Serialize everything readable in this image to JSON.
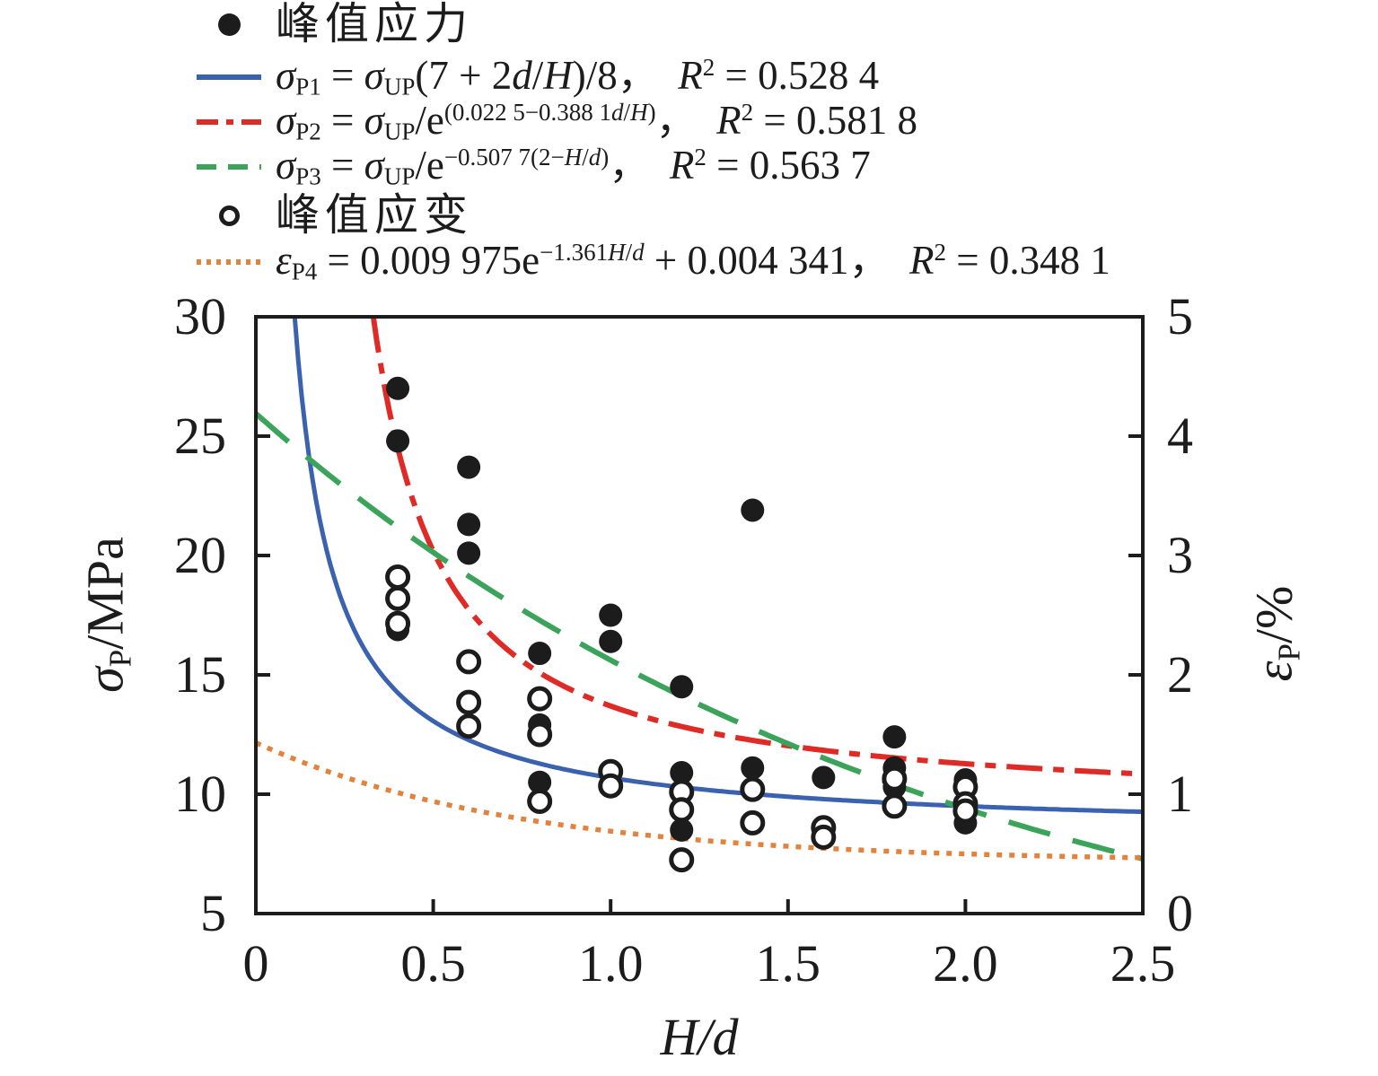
{
  "figure": {
    "background": "#ffffff",
    "text_color": "#1c1c1c"
  },
  "legend": {
    "items": [
      {
        "id": "peak-stress",
        "marker": "dot-filled",
        "cjk": true,
        "label_parts": [
          {
            "t": "峰值应力"
          }
        ]
      },
      {
        "id": "fit-sigma-p1",
        "marker": "line-solid",
        "color": "#3a62ae",
        "label_parts": [
          {
            "t": "σ",
            "i": 1
          },
          {
            "t": "P1",
            "sub": 1
          },
          {
            "t": " = "
          },
          {
            "t": "σ",
            "i": 1
          },
          {
            "t": "UP",
            "sub": 1
          },
          {
            "t": "(7 + 2"
          },
          {
            "t": "d",
            "i": 1
          },
          {
            "t": "/"
          },
          {
            "t": "H",
            "i": 1
          },
          {
            "t": ")/8，  "
          },
          {
            "t": "R",
            "i": 1
          },
          {
            "t": "2",
            "sup": 1
          },
          {
            "t": " = 0.528 4"
          }
        ]
      },
      {
        "id": "fit-sigma-p2",
        "marker": "line-dashdot",
        "color": "#df2b26",
        "label_parts": [
          {
            "t": "σ",
            "i": 1
          },
          {
            "t": "P2",
            "sub": 1
          },
          {
            "t": " = "
          },
          {
            "t": "σ",
            "i": 1
          },
          {
            "t": "UP",
            "sub": 1
          },
          {
            "t": "/e"
          },
          {
            "t": "(0.022 5−0.388 1",
            "sup": 1
          },
          {
            "t": "d",
            "sup": 1,
            "i": 1
          },
          {
            "t": "/",
            "sup": 1
          },
          {
            "t": "H",
            "sup": 1,
            "i": 1
          },
          {
            "t": ")",
            "sup": 1
          },
          {
            "t": "，  "
          },
          {
            "t": "R",
            "i": 1
          },
          {
            "t": "2",
            "sup": 1
          },
          {
            "t": " = 0.581 8"
          }
        ]
      },
      {
        "id": "fit-sigma-p3",
        "marker": "line-dashed",
        "color": "#3ba35a",
        "label_parts": [
          {
            "t": "σ",
            "i": 1
          },
          {
            "t": "P3",
            "sub": 1
          },
          {
            "t": " = "
          },
          {
            "t": "σ",
            "i": 1
          },
          {
            "t": "UP",
            "sub": 1
          },
          {
            "t": "/e"
          },
          {
            "t": "−0.507 7(2−",
            "sup": 1
          },
          {
            "t": "H",
            "sup": 1,
            "i": 1
          },
          {
            "t": "/",
            "sup": 1
          },
          {
            "t": "d",
            "sup": 1,
            "i": 1
          },
          {
            "t": ")",
            "sup": 1
          },
          {
            "t": "，  "
          },
          {
            "t": "R",
            "i": 1
          },
          {
            "t": "2",
            "sup": 1
          },
          {
            "t": " = 0.563 7"
          }
        ]
      },
      {
        "id": "peak-strain",
        "marker": "dot-open",
        "cjk": true,
        "label_parts": [
          {
            "t": "峰值应变"
          }
        ]
      },
      {
        "id": "fit-eps-p4",
        "marker": "line-dotted",
        "color": "#e2823d",
        "label_parts": [
          {
            "t": "ε",
            "i": 1
          },
          {
            "t": "P4",
            "sub": 1
          },
          {
            "t": " = 0.009 975e"
          },
          {
            "t": "−1.361",
            "sup": 1
          },
          {
            "t": "H",
            "sup": 1,
            "i": 1
          },
          {
            "t": "/",
            "sup": 1
          },
          {
            "t": "d",
            "sup": 1,
            "i": 1
          },
          {
            "t": " + 0.004 341，  "
          },
          {
            "t": "R",
            "i": 1
          },
          {
            "t": "2",
            "sup": 1
          },
          {
            "t": " = 0.348 1"
          }
        ]
      }
    ]
  },
  "axes": {
    "x": {
      "title_parts": [
        {
          "t": "H",
          "i": 1
        },
        {
          "t": "/"
        },
        {
          "t": "d",
          "i": 1
        }
      ],
      "tick_labels": [
        "0",
        "0.5",
        "1.0",
        "1.5",
        "2.0",
        "2.5"
      ],
      "tick_values": [
        0,
        0.5,
        1.0,
        1.5,
        2.0,
        2.5
      ],
      "range": [
        0,
        2.5
      ]
    },
    "y_left": {
      "title_parts": [
        {
          "t": "σ",
          "i": 1
        },
        {
          "t": "P",
          "sub": 1
        },
        {
          "t": "/MPa"
        }
      ],
      "tick_labels": [
        "5",
        "10",
        "15",
        "20",
        "25",
        "30"
      ],
      "tick_values": [
        5,
        10,
        15,
        20,
        25,
        30
      ],
      "range": [
        5,
        30
      ]
    },
    "y_right": {
      "title_parts": [
        {
          "t": "ε",
          "i": 1
        },
        {
          "t": "P",
          "sub": 1
        },
        {
          "t": "/%"
        }
      ],
      "tick_labels": [
        "0",
        "1",
        "2",
        "3",
        "4",
        "5"
      ],
      "tick_values": [
        0,
        1,
        2,
        3,
        4,
        5
      ],
      "range": [
        0,
        5
      ]
    }
  },
  "chart_data": {
    "type": "scatter",
    "title": "",
    "xlabel": "H/d",
    "ylabel_left": "σP/MPa",
    "ylabel_right": "εP/%",
    "xlim": [
      0,
      2.5
    ],
    "ylim_left": [
      5,
      30
    ],
    "ylim_right": [
      0,
      5
    ],
    "grid": false,
    "legend_position": "top-left-above-plot",
    "series": [
      {
        "name": "峰值应力",
        "axis": "left",
        "marker": "filled-circle",
        "color": "#1c1c1c",
        "points": [
          [
            0.4,
            27.0
          ],
          [
            0.4,
            24.8
          ],
          [
            0.4,
            16.9
          ],
          [
            0.6,
            23.7
          ],
          [
            0.6,
            21.3
          ],
          [
            0.6,
            20.1
          ],
          [
            0.8,
            15.9
          ],
          [
            0.8,
            12.9
          ],
          [
            0.8,
            10.5
          ],
          [
            1.0,
            17.5
          ],
          [
            1.0,
            16.4
          ],
          [
            1.2,
            14.5
          ],
          [
            1.2,
            10.9
          ],
          [
            1.2,
            8.5
          ],
          [
            1.4,
            21.9
          ],
          [
            1.4,
            11.1
          ],
          [
            1.6,
            10.7
          ],
          [
            1.8,
            12.4
          ],
          [
            1.8,
            11.1
          ],
          [
            1.8,
            10.3
          ],
          [
            2.0,
            10.6
          ],
          [
            2.0,
            8.8
          ]
        ]
      },
      {
        "name": "峰值应变",
        "axis": "right",
        "marker": "open-circle",
        "color": "#1c1c1c",
        "points": [
          [
            0.4,
            2.82
          ],
          [
            0.4,
            2.64
          ],
          [
            0.4,
            2.43
          ],
          [
            0.6,
            2.11
          ],
          [
            0.6,
            1.77
          ],
          [
            0.6,
            1.57
          ],
          [
            0.8,
            1.8
          ],
          [
            0.8,
            1.5
          ],
          [
            0.8,
            0.94
          ],
          [
            1.0,
            1.19
          ],
          [
            1.0,
            1.07
          ],
          [
            1.2,
            1.02
          ],
          [
            1.2,
            0.87
          ],
          [
            1.2,
            0.45
          ],
          [
            1.4,
            1.04
          ],
          [
            1.4,
            0.76
          ],
          [
            1.6,
            0.72
          ],
          [
            1.6,
            0.64
          ],
          [
            1.8,
            1.13
          ],
          [
            1.8,
            0.9
          ],
          [
            2.0,
            1.06
          ],
          [
            2.0,
            0.92
          ],
          [
            2.0,
            0.86
          ]
        ]
      }
    ],
    "curves": [
      {
        "id": "sigma_p1",
        "axis": "left",
        "style": "solid",
        "color": "#3a62ae",
        "formula": "sigma_P1 = sigma_UP*(7 + 2*d/H)/8",
        "r2": 0.5284,
        "coeffs": {
          "sigma_up": 9.5
        },
        "x_range": [
          0.1095,
          2.5
        ]
      },
      {
        "id": "sigma_p2",
        "axis": "left",
        "style": "dashdot",
        "color": "#df2b26",
        "formula": "sigma_P2 = sigma_UP/exp(0.0225 - 0.3881*d/H)",
        "r2": 0.5818,
        "coeffs": {
          "sigma_up": 9.5,
          "a": 0.0225,
          "b": 0.3881
        },
        "x_range": [
          0.3311,
          2.5
        ]
      },
      {
        "id": "sigma_p3",
        "axis": "left",
        "style": "dashed",
        "color": "#3ba35a",
        "formula": "sigma_P3 = sigma_UP/exp(-0.5077*(2 - H/d))",
        "r2": 0.5637,
        "coeffs": {
          "sigma_up": 9.4,
          "c": 0.5077
        },
        "x_range": [
          0,
          2.5
        ]
      },
      {
        "id": "eps_p4",
        "axis": "right",
        "style": "dotted",
        "color": "#e2823d",
        "formula": "eps_P4(%) = 0.9975*exp(-1.361*H/d) + 0.4341",
        "r2": 0.3481,
        "coeffs": {
          "A": 0.9975,
          "k": 1.361,
          "B": 0.4341
        },
        "x_range": [
          0,
          2.5
        ]
      }
    ]
  }
}
